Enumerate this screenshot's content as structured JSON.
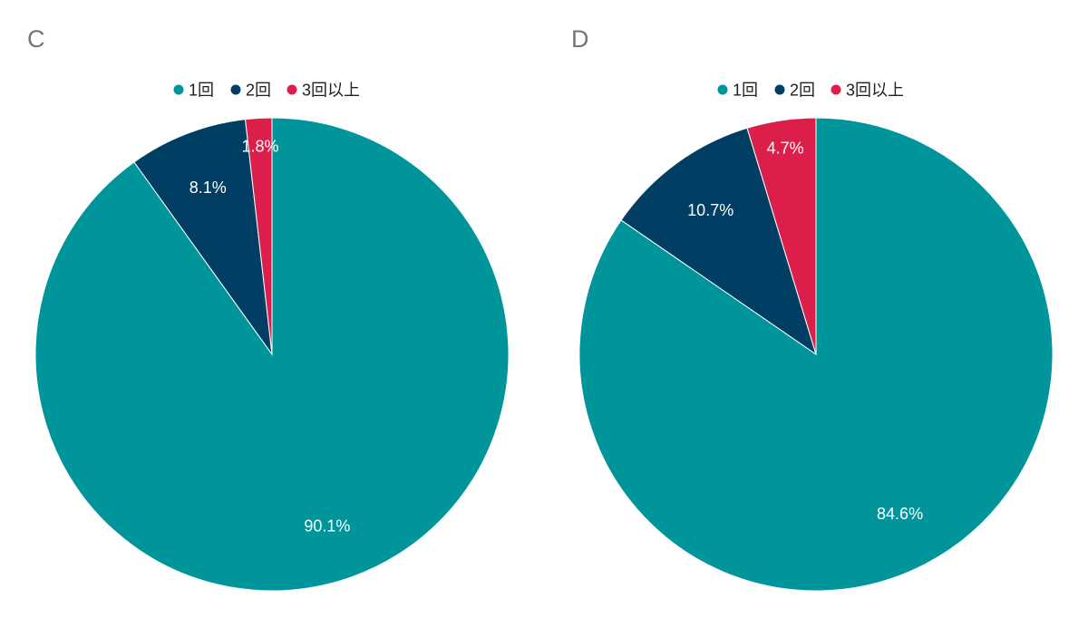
{
  "chart_data": [
    {
      "type": "pie",
      "title": "C",
      "categories": [
        "1回",
        "2回",
        "3回以上"
      ],
      "values": [
        90.1,
        8.1,
        1.8
      ],
      "labels": [
        "90.1%",
        "8.1%",
        "1.8%"
      ],
      "colors": [
        "#00959b",
        "#003f63",
        "#dc1e4b"
      ],
      "legend_position": "top"
    },
    {
      "type": "pie",
      "title": "D",
      "categories": [
        "1回",
        "2回",
        "3回以上"
      ],
      "values": [
        84.6,
        10.7,
        4.7
      ],
      "labels": [
        "84.6%",
        "10.7%",
        "4.7%"
      ],
      "colors": [
        "#00959b",
        "#003f63",
        "#dc1e4b"
      ],
      "legend_position": "top"
    }
  ]
}
